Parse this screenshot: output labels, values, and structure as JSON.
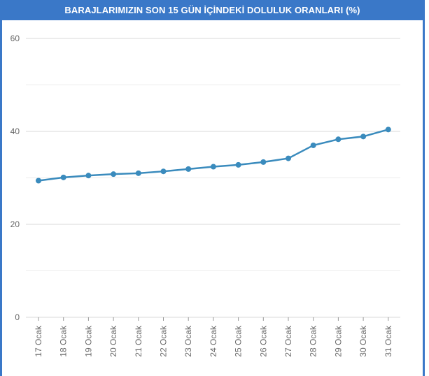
{
  "chart_data": {
    "type": "line",
    "title": "BARAJLARIMIZIN SON 15 GÜN İÇİNDEKİ DOLULUK ORANLARI (%)",
    "xlabel": "",
    "ylabel": "",
    "categories": [
      "17 Ocak",
      "18 Ocak",
      "19 Ocak",
      "20 Ocak",
      "21 Ocak",
      "22 Ocak",
      "23 Ocak",
      "24 Ocak",
      "25 Ocak",
      "26 Ocak",
      "27 Ocak",
      "28 Ocak",
      "29 Ocak",
      "30 Ocak",
      "31 Ocak"
    ],
    "series": [
      {
        "values": [
          29.4,
          30.1,
          30.5,
          30.8,
          31.0,
          31.4,
          31.9,
          32.4,
          32.8,
          33.4,
          34.2,
          37.0,
          38.3,
          38.9,
          40.4
        ]
      }
    ],
    "ylim": [
      0,
      60
    ],
    "yticks": [
      0,
      20,
      40,
      60
    ],
    "grid": true,
    "legend": "none",
    "colors": {
      "line": "#3a8bbd",
      "marker": "#3a8bbd",
      "title_bg": "#3a78c8",
      "grid": "#dddddd"
    }
  }
}
